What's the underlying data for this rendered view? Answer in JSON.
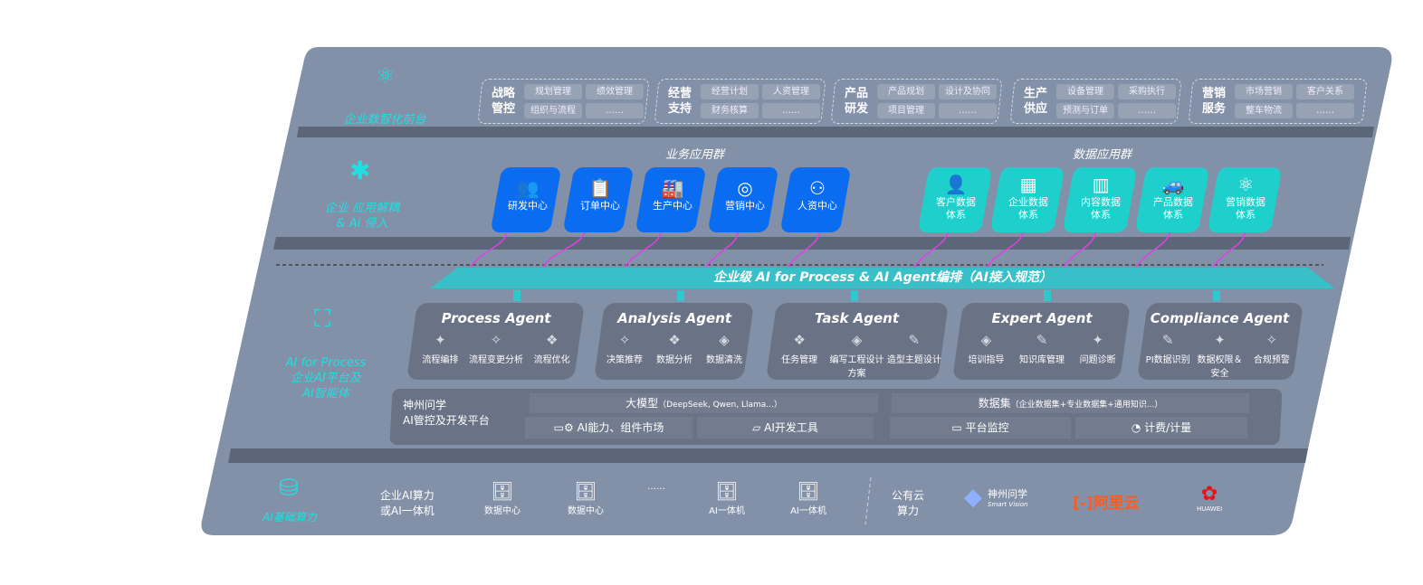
{
  "colors": {
    "panel": "#8290a8",
    "accent": "#1fe0e0",
    "blue_tile": "#0a6cf0",
    "teal_tile": "#1ecfcb",
    "arrow": "#e040e8",
    "agent_box": "#6a7386"
  },
  "layer1": {
    "label": "企业数智化前台",
    "icon": "brain-icon",
    "groups": [
      {
        "title": [
          "战略",
          "管控"
        ],
        "items": [
          "规划管理",
          "绩效管理",
          "组织与流程",
          "……"
        ]
      },
      {
        "title": [
          "经营",
          "支持"
        ],
        "items": [
          "经营计划",
          "人资管理",
          "财务核算",
          "……"
        ]
      },
      {
        "title": [
          "产品",
          "研发"
        ],
        "items": [
          "产品规划",
          "设计及协同",
          "项目管理",
          "……"
        ]
      },
      {
        "title": [
          "生产",
          "供应"
        ],
        "items": [
          "设备管理",
          "采购执行",
          "预测与订单",
          "……"
        ]
      },
      {
        "title": [
          "营销",
          "服务"
        ],
        "items": [
          "市场营销",
          "客户关系",
          "整车物流",
          "……"
        ]
      }
    ]
  },
  "layer2": {
    "label": [
      "企业 应用解耦",
      "& AI 侵入"
    ],
    "icon": "molecule-icon",
    "business_title": "业务应用群",
    "business": [
      {
        "label": "研发中心",
        "icon": "team-icon"
      },
      {
        "label": "订单中心",
        "icon": "clipboard-icon"
      },
      {
        "label": "生产中心",
        "icon": "factory-icon"
      },
      {
        "label": "营销中心",
        "icon": "target-icon"
      },
      {
        "label": "人资中心",
        "icon": "person-icon"
      }
    ],
    "data_title": "数据应用群",
    "data": [
      {
        "label": [
          "客户数据",
          "体系"
        ],
        "icon": "user-icon"
      },
      {
        "label": [
          "企业数据",
          "体系"
        ],
        "icon": "building-icon"
      },
      {
        "label": [
          "内容数据",
          "体系"
        ],
        "icon": "books-icon"
      },
      {
        "label": [
          "产品数据",
          "体系"
        ],
        "icon": "car-icon"
      },
      {
        "label": [
          "营销数据",
          "体系"
        ],
        "icon": "atom-icon"
      }
    ]
  },
  "banner": "企业级 AI for Process & AI Agent编排（AI接入规范）",
  "layer3": {
    "label": [
      "AI for Process",
      "企业AI平台及",
      "AI智能体"
    ],
    "icon": "face-scan-icon",
    "agents": [
      {
        "name": "Process Agent",
        "features": [
          "流程编排",
          "流程变更分析",
          "流程优化"
        ]
      },
      {
        "name": "Analysis Agent",
        "features": [
          "决策推荐",
          "数据分析",
          "数据清洗"
        ]
      },
      {
        "name": "Task Agent",
        "features": [
          "任务管理",
          "编写工程设计方案",
          "造型主题设计"
        ]
      },
      {
        "name": "Expert Agent",
        "features": [
          "培训指导",
          "知识库管理",
          "问题诊断"
        ]
      },
      {
        "name": "Compliance Agent",
        "features": [
          "PI数据识别",
          "数据权限＆安全",
          "合规预警"
        ]
      }
    ],
    "platform": {
      "title": [
        "神州问学",
        "AI管控及开发平台"
      ],
      "model": "大模型",
      "model_note": "（DeepSeek, Qwen, Llama...）",
      "dataset": "数据集",
      "dataset_note": "（企业数据集+专业数据集+通用知识...）",
      "cells": [
        "AI能力、组件市场",
        "AI开发工具",
        "平台监控",
        "计费/计量"
      ]
    }
  },
  "layer4": {
    "label": "AI基础算力",
    "icon": "database-icon",
    "private_label": [
      "企业AI算力",
      "或AI一体机"
    ],
    "servers": [
      "数据中心",
      "数据中心",
      "……",
      "AI一体机",
      "AI一体机"
    ],
    "public_label": [
      "公有云",
      "算力"
    ],
    "providers": [
      {
        "name": "神州问学",
        "sub": "Smart Vision"
      },
      {
        "name": "阿里云"
      },
      {
        "name": "HUAWEI"
      }
    ]
  }
}
